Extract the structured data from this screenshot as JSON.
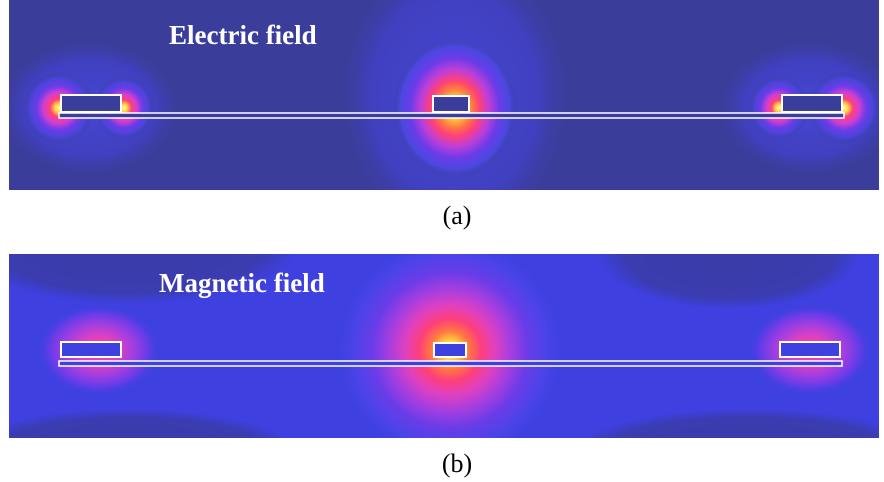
{
  "figure": {
    "panels": [
      {
        "title": "Electric field",
        "caption": "(a)",
        "background": "#3b3d9a"
      },
      {
        "title": "Magnetic field",
        "caption": "(b)",
        "background": "#3b3db0"
      }
    ],
    "colormap": [
      "#3b3d9a",
      "#3e3fd0",
      "#5a3ae8",
      "#a43ee0",
      "#e040c0",
      "#ff4078",
      "#ff7a40",
      "#ffd040",
      "#ffffb0"
    ],
    "conductor_color": "#3b3d9a",
    "outline_color": "#ffffff"
  }
}
